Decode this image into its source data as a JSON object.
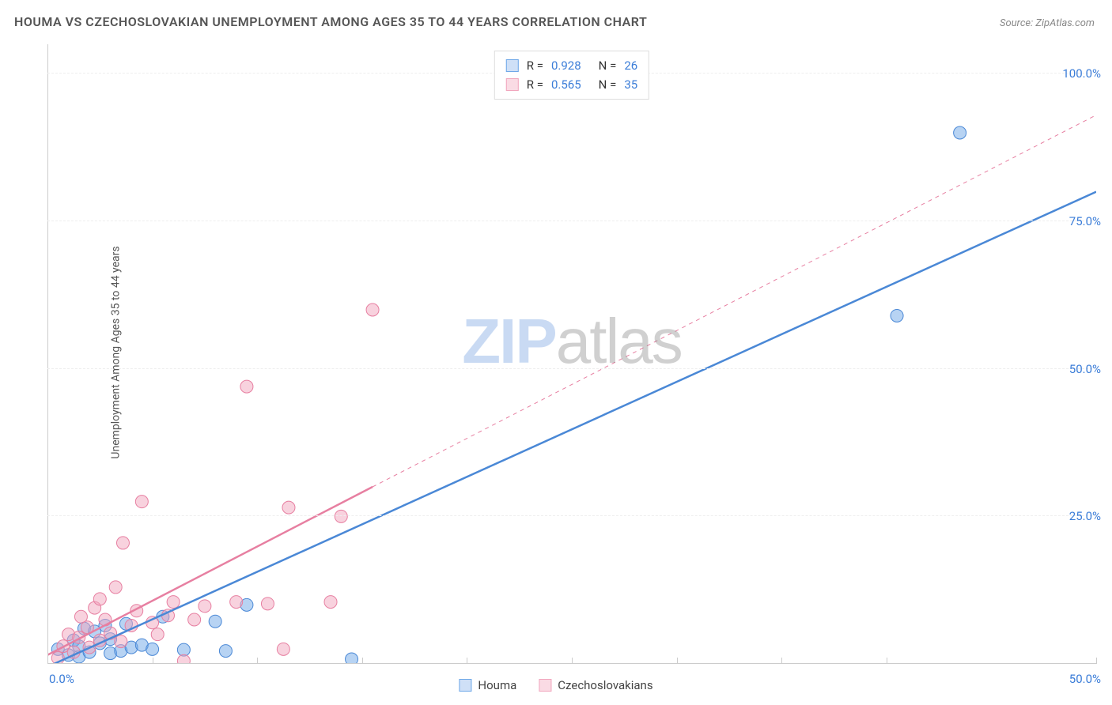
{
  "title": "HOUMA VS CZECHOSLOVAKIAN UNEMPLOYMENT AMONG AGES 35 TO 44 YEARS CORRELATION CHART",
  "source": "Source: ZipAtlas.com",
  "ylabel": "Unemployment Among Ages 35 to 44 years",
  "watermark": {
    "part1": "ZIP",
    "part2": "atlas"
  },
  "chart": {
    "type": "scatter",
    "background_color": "#ffffff",
    "grid_color": "#eeeeee",
    "axis_color": "#cccccc",
    "xlim": [
      0,
      100
    ],
    "ylim": [
      0,
      105
    ],
    "x_ticks_major": [
      0,
      10,
      20,
      30,
      40,
      50,
      60,
      70,
      80,
      100
    ],
    "x_tick_labels": {
      "0": "0.0%",
      "100": "50.0%"
    },
    "y_ticks": [
      25,
      50,
      75,
      100
    ],
    "y_tick_labels": [
      "25.0%",
      "50.0%",
      "75.0%",
      "100.0%"
    ],
    "marker_radius": 8,
    "marker_opacity": 0.5,
    "line_width_solid": 2.5,
    "line_width_dashed": 1,
    "series": [
      {
        "name": "Houma",
        "color": "#6fa8e8",
        "stroke": "#4a88d6",
        "R": "0.928",
        "N": "26",
        "points": [
          [
            1,
            2.5
          ],
          [
            2,
            1.5
          ],
          [
            2.5,
            4
          ],
          [
            3,
            1.2
          ],
          [
            3.5,
            6
          ],
          [
            3,
            3
          ],
          [
            4,
            2
          ],
          [
            4.5,
            5.5
          ],
          [
            5,
            3.5
          ],
          [
            5.5,
            6.5
          ],
          [
            6,
            1.8
          ],
          [
            6,
            4.2
          ],
          [
            7,
            2.2
          ],
          [
            7.5,
            6.8
          ],
          [
            8,
            2.8
          ],
          [
            9,
            3.2
          ],
          [
            10,
            2.5
          ],
          [
            11,
            8
          ],
          [
            13,
            2.4
          ],
          [
            16,
            7.2
          ],
          [
            17,
            2.2
          ],
          [
            19,
            10
          ],
          [
            29,
            0.8
          ],
          [
            81,
            59
          ],
          [
            87,
            90
          ]
        ],
        "trend_solid": {
          "x1": 0,
          "y1": -0.5,
          "x2": 100,
          "y2": 80
        },
        "trend_dashed": null
      },
      {
        "name": "Czechoslovakians",
        "color": "#f1a6bd",
        "stroke": "#e77fa1",
        "R": "0.565",
        "N": "35",
        "points": [
          [
            1,
            1
          ],
          [
            1.5,
            3
          ],
          [
            2,
            5
          ],
          [
            2.5,
            2
          ],
          [
            3,
            4.5
          ],
          [
            3.2,
            8
          ],
          [
            3.8,
            6.2
          ],
          [
            4,
            2.8
          ],
          [
            4.5,
            9.5
          ],
          [
            5,
            4
          ],
          [
            5,
            11
          ],
          [
            5.5,
            7.5
          ],
          [
            6,
            5.2
          ],
          [
            6.5,
            13
          ],
          [
            7,
            3.8
          ],
          [
            7.2,
            20.5
          ],
          [
            8,
            6.5
          ],
          [
            8.5,
            9
          ],
          [
            9,
            27.5
          ],
          [
            10,
            7
          ],
          [
            10.5,
            5
          ],
          [
            11.5,
            8.2
          ],
          [
            12,
            10.5
          ],
          [
            13,
            0.5
          ],
          [
            14,
            7.5
          ],
          [
            15,
            9.8
          ],
          [
            18,
            10.5
          ],
          [
            19,
            47
          ],
          [
            21,
            10.2
          ],
          [
            22.5,
            2.5
          ],
          [
            23,
            26.5
          ],
          [
            27,
            10.5
          ],
          [
            28,
            25
          ],
          [
            31,
            60
          ]
        ],
        "trend_solid": {
          "x1": 0,
          "y1": 1.5,
          "x2": 31,
          "y2": 30
        },
        "trend_dashed": {
          "x1": 31,
          "y1": 30,
          "x2": 100,
          "y2": 93
        }
      }
    ]
  },
  "legend_top": [
    {
      "swatch_fill": "#cfe0f7",
      "swatch_border": "#6fa8e8",
      "r_label": "R =",
      "r_val": "0.928",
      "n_label": "N =",
      "n_val": "26"
    },
    {
      "swatch_fill": "#fadbe4",
      "swatch_border": "#f1a6bd",
      "r_label": "R =",
      "r_val": "0.565",
      "n_label": "N =",
      "n_val": "35"
    }
  ],
  "legend_bottom": [
    {
      "swatch_fill": "#cfe0f7",
      "swatch_border": "#6fa8e8",
      "label": "Houma"
    },
    {
      "swatch_fill": "#fadbe4",
      "swatch_border": "#f1a6bd",
      "label": "Czechoslovakians"
    }
  ]
}
